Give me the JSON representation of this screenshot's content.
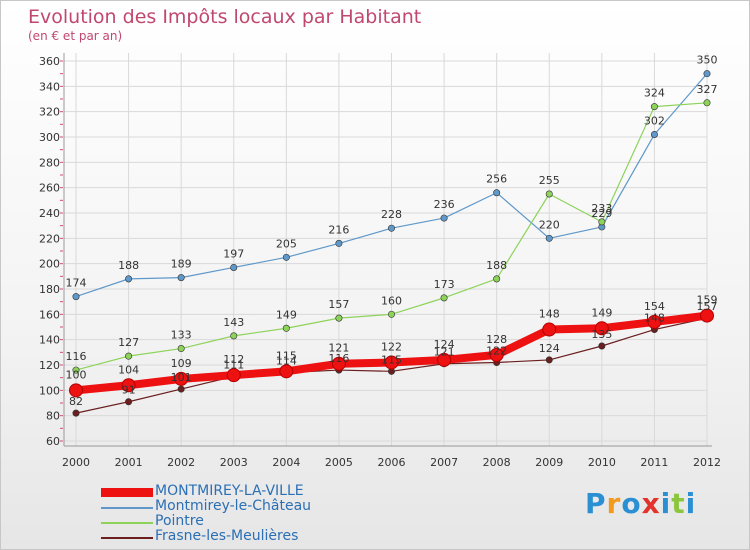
{
  "colors": {
    "title": "#c0486f",
    "axis_text": "#333333",
    "grid": "#d9d9d9",
    "axis_ticks": "#d34a78"
  },
  "logo": {
    "letters": [
      "P",
      "r",
      "o",
      "x",
      "i",
      "t",
      "i"
    ],
    "letter_colors": [
      "#2a8fd3",
      "#f29b1d",
      "#2a8fd3",
      "#e2322b",
      "#2a8fd3",
      "#8cc63f",
      "#2a8fd3"
    ]
  },
  "chart_data": {
    "type": "line",
    "title": "Evolution des Impôts locaux par Habitant",
    "subtitle": "(en € et par an)",
    "categories": [
      "2000",
      "2001",
      "2002",
      "2003",
      "2004",
      "2005",
      "2006",
      "2007",
      "2008",
      "2009",
      "2010",
      "2011",
      "2012"
    ],
    "ylim": [
      60,
      360
    ],
    "yticks": [
      60,
      80,
      100,
      120,
      140,
      160,
      180,
      200,
      220,
      240,
      260,
      280,
      300,
      320,
      340,
      360
    ],
    "grid": true,
    "legend_position": "bottom-left",
    "series": [
      {
        "name": "MONTMIREY-LA-VILLE",
        "color": "#ee1111",
        "width": "thick",
        "values": [
          100,
          104,
          109,
          112,
          115,
          121,
          122,
          124,
          128,
          148,
          149,
          154,
          159
        ]
      },
      {
        "name": "Montmirey-le-Château",
        "color": "#5f98c9",
        "width": "thin",
        "values": [
          174,
          188,
          189,
          197,
          205,
          216,
          228,
          236,
          256,
          220,
          229,
          302,
          350
        ]
      },
      {
        "name": "Pointre",
        "color": "#8dd35a",
        "width": "thin",
        "values": [
          116,
          127,
          133,
          143,
          149,
          157,
          160,
          173,
          188,
          255,
          233,
          324,
          327
        ]
      },
      {
        "name": "Frasne-les-Meulières",
        "color": "#6b1f1f",
        "width": "thin",
        "values": [
          82,
          91,
          101,
          111,
          114,
          116,
          115,
          121,
          122,
          124,
          135,
          148,
          157
        ]
      }
    ]
  }
}
